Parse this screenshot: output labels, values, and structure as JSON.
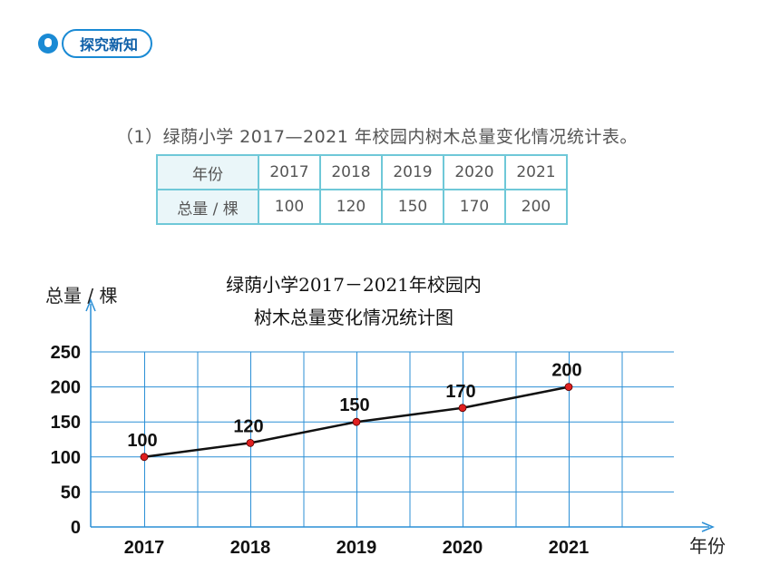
{
  "header": {
    "section_label": "探究新知"
  },
  "table": {
    "caption": "（1）绿荫小学 2017—2021 年校园内树木总量变化情况统计表。",
    "row1_label": "年份",
    "row2_label": "总量 / 棵",
    "years": [
      "2017",
      "2018",
      "2019",
      "2020",
      "2021"
    ],
    "totals": [
      "100",
      "120",
      "150",
      "170",
      "200"
    ]
  },
  "chart_data": {
    "type": "line",
    "title_line1": "绿荫小学2017－2021年校园内",
    "title_line2": "树木总量变化情况统计图",
    "ylabel": "总量 / 棵",
    "xlabel": "年份",
    "categories": [
      "2017",
      "2018",
      "2019",
      "2020",
      "2021"
    ],
    "values": [
      100,
      120,
      150,
      170,
      200
    ],
    "ylim": [
      0,
      250
    ],
    "yticks": [
      0,
      50,
      100,
      150,
      200,
      250
    ],
    "grid": true,
    "colors": {
      "grid": "#2b8fd6",
      "line": "#111111",
      "point": "#e02020"
    }
  }
}
